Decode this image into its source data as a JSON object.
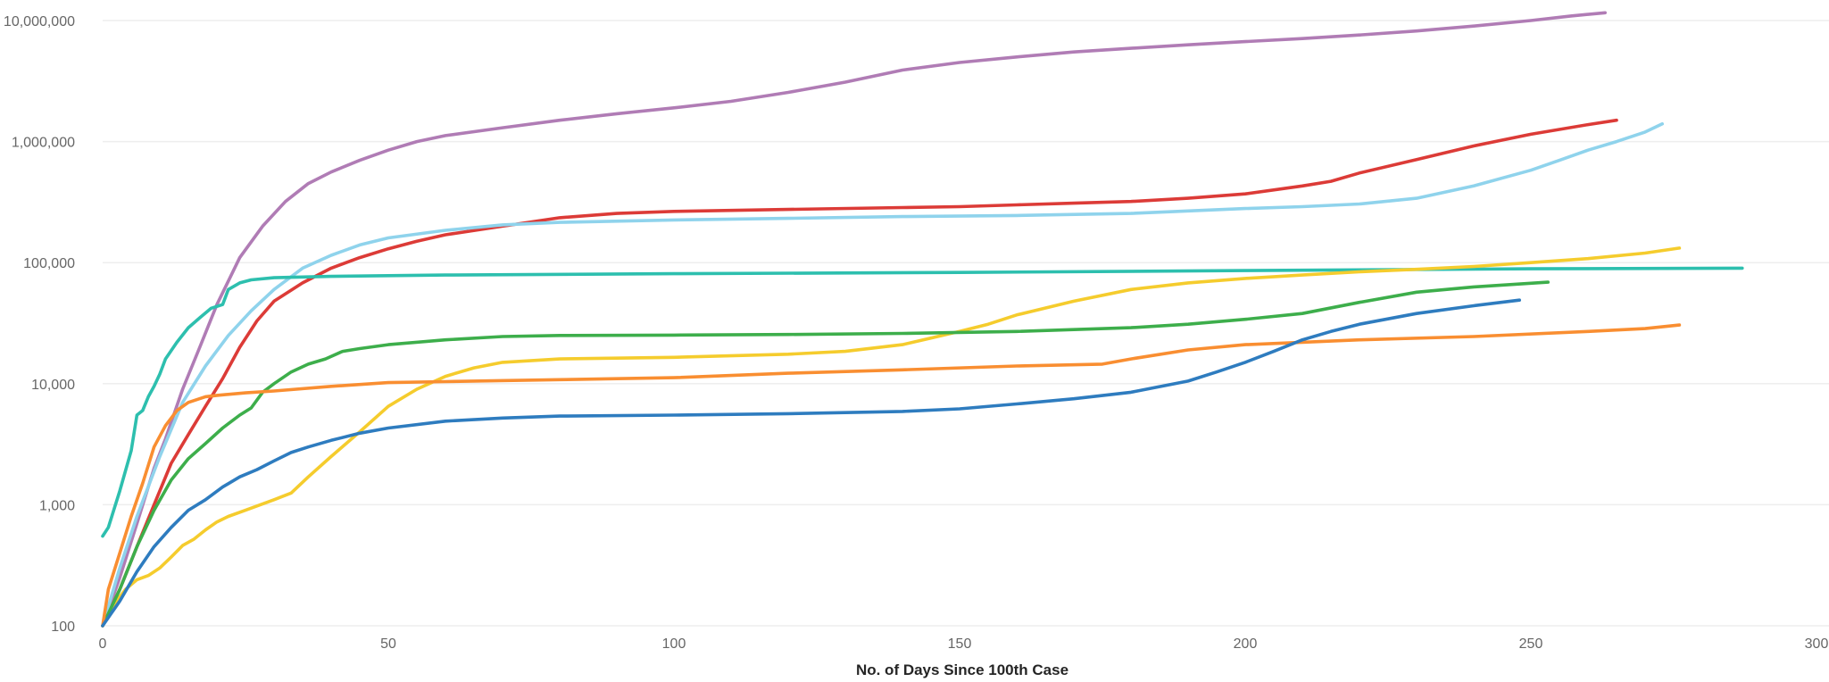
{
  "chart_data": {
    "type": "line",
    "title": "",
    "xlabel": "No. of Days Since 100th Case",
    "ylabel": "",
    "x_scale": "linear",
    "y_scale": "log",
    "xlim": [
      0,
      300
    ],
    "ylim": [
      100,
      10000000
    ],
    "x_ticks": [
      {
        "value": 0,
        "label": "0"
      },
      {
        "value": 50,
        "label": "50"
      },
      {
        "value": 100,
        "label": "100"
      },
      {
        "value": 150,
        "label": "150"
      },
      {
        "value": 200,
        "label": "200"
      },
      {
        "value": 250,
        "label": "250"
      },
      {
        "value": 300,
        "label": "300"
      }
    ],
    "y_ticks": [
      {
        "value": 100,
        "label": "100"
      },
      {
        "value": 1000,
        "label": "1,000"
      },
      {
        "value": 10000,
        "label": "10,000"
      },
      {
        "value": 100000,
        "label": "100,000"
      },
      {
        "value": 1000000,
        "label": "1,000,000"
      },
      {
        "value": 10000000,
        "label": "10,000,000"
      }
    ],
    "grid": true,
    "legend": "none",
    "series": [
      {
        "color": "#b07cb5",
        "points": [
          [
            0,
            100
          ],
          [
            3,
            250
          ],
          [
            6,
            700
          ],
          [
            9,
            2000
          ],
          [
            11,
            3500
          ],
          [
            14,
            9000
          ],
          [
            17,
            20000
          ],
          [
            20,
            45000
          ],
          [
            24,
            110000
          ],
          [
            28,
            200000
          ],
          [
            32,
            320000
          ],
          [
            36,
            450000
          ],
          [
            40,
            560000
          ],
          [
            45,
            700000
          ],
          [
            50,
            850000
          ],
          [
            55,
            1000000
          ],
          [
            60,
            1120000
          ],
          [
            70,
            1300000
          ],
          [
            80,
            1500000
          ],
          [
            90,
            1700000
          ],
          [
            100,
            1900000
          ],
          [
            110,
            2150000
          ],
          [
            120,
            2550000
          ],
          [
            130,
            3100000
          ],
          [
            140,
            3900000
          ],
          [
            150,
            4500000
          ],
          [
            160,
            5000000
          ],
          [
            170,
            5500000
          ],
          [
            180,
            5900000
          ],
          [
            190,
            6300000
          ],
          [
            200,
            6700000
          ],
          [
            210,
            7100000
          ],
          [
            220,
            7600000
          ],
          [
            230,
            8200000
          ],
          [
            240,
            9000000
          ],
          [
            250,
            10000000
          ],
          [
            257,
            10900000
          ],
          [
            263,
            11600000
          ]
        ]
      },
      {
        "color": "#dc3b37",
        "points": [
          [
            0,
            100
          ],
          [
            3,
            200
          ],
          [
            6,
            450
          ],
          [
            9,
            1000
          ],
          [
            12,
            2200
          ],
          [
            15,
            3800
          ],
          [
            18,
            6500
          ],
          [
            21,
            11000
          ],
          [
            24,
            20000
          ],
          [
            27,
            33000
          ],
          [
            30,
            48000
          ],
          [
            35,
            68000
          ],
          [
            40,
            90000
          ],
          [
            45,
            110000
          ],
          [
            50,
            130000
          ],
          [
            55,
            150000
          ],
          [
            60,
            170000
          ],
          [
            70,
            200000
          ],
          [
            80,
            235000
          ],
          [
            90,
            255000
          ],
          [
            100,
            265000
          ],
          [
            120,
            275000
          ],
          [
            140,
            285000
          ],
          [
            150,
            290000
          ],
          [
            160,
            300000
          ],
          [
            170,
            310000
          ],
          [
            180,
            320000
          ],
          [
            190,
            340000
          ],
          [
            200,
            370000
          ],
          [
            210,
            430000
          ],
          [
            215,
            470000
          ],
          [
            220,
            550000
          ],
          [
            230,
            710000
          ],
          [
            240,
            920000
          ],
          [
            250,
            1150000
          ],
          [
            260,
            1380000
          ],
          [
            265,
            1500000
          ]
        ]
      },
      {
        "color": "#8fd3ec",
        "points": [
          [
            0,
            100
          ],
          [
            3,
            300
          ],
          [
            6,
            800
          ],
          [
            10,
            2500
          ],
          [
            14,
            7000
          ],
          [
            18,
            14000
          ],
          [
            22,
            25000
          ],
          [
            26,
            40000
          ],
          [
            30,
            60000
          ],
          [
            35,
            90000
          ],
          [
            40,
            115000
          ],
          [
            45,
            140000
          ],
          [
            50,
            160000
          ],
          [
            60,
            185000
          ],
          [
            70,
            205000
          ],
          [
            80,
            215000
          ],
          [
            100,
            225000
          ],
          [
            120,
            232000
          ],
          [
            140,
            240000
          ],
          [
            160,
            245000
          ],
          [
            180,
            255000
          ],
          [
            200,
            280000
          ],
          [
            210,
            290000
          ],
          [
            220,
            305000
          ],
          [
            230,
            340000
          ],
          [
            240,
            430000
          ],
          [
            250,
            580000
          ],
          [
            255,
            700000
          ],
          [
            260,
            850000
          ],
          [
            265,
            1000000
          ],
          [
            270,
            1200000
          ],
          [
            273,
            1400000
          ]
        ]
      },
      {
        "color": "#2dbfae",
        "points": [
          [
            0,
            550
          ],
          [
            1,
            650
          ],
          [
            3,
            1300
          ],
          [
            5,
            2800
          ],
          [
            6,
            5500
          ],
          [
            7,
            6000
          ],
          [
            8,
            7800
          ],
          [
            9,
            9500
          ],
          [
            10,
            12000
          ],
          [
            11,
            16000
          ],
          [
            13,
            22000
          ],
          [
            15,
            29000
          ],
          [
            17,
            35000
          ],
          [
            19,
            42000
          ],
          [
            21,
            45000
          ],
          [
            22,
            60000
          ],
          [
            24,
            68000
          ],
          [
            26,
            72000
          ],
          [
            30,
            75000
          ],
          [
            40,
            77000
          ],
          [
            60,
            79000
          ],
          [
            100,
            81000
          ],
          [
            150,
            83000
          ],
          [
            200,
            86000
          ],
          [
            250,
            89000
          ],
          [
            287,
            90000
          ]
        ]
      },
      {
        "color": "#f5cc2d",
        "points": [
          [
            0,
            100
          ],
          [
            2,
            150
          ],
          [
            4,
            200
          ],
          [
            6,
            240
          ],
          [
            8,
            260
          ],
          [
            10,
            300
          ],
          [
            12,
            370
          ],
          [
            14,
            460
          ],
          [
            16,
            520
          ],
          [
            18,
            620
          ],
          [
            20,
            720
          ],
          [
            22,
            800
          ],
          [
            25,
            900
          ],
          [
            30,
            1100
          ],
          [
            33,
            1250
          ],
          [
            36,
            1700
          ],
          [
            40,
            2500
          ],
          [
            45,
            4000
          ],
          [
            50,
            6500
          ],
          [
            55,
            9000
          ],
          [
            60,
            11500
          ],
          [
            65,
            13500
          ],
          [
            70,
            15000
          ],
          [
            80,
            16000
          ],
          [
            100,
            16500
          ],
          [
            120,
            17500
          ],
          [
            130,
            18500
          ],
          [
            140,
            21000
          ],
          [
            150,
            27000
          ],
          [
            155,
            31000
          ],
          [
            160,
            37000
          ],
          [
            170,
            48000
          ],
          [
            180,
            60000
          ],
          [
            190,
            68000
          ],
          [
            200,
            74000
          ],
          [
            210,
            79000
          ],
          [
            220,
            84000
          ],
          [
            230,
            88000
          ],
          [
            240,
            93000
          ],
          [
            250,
            100000
          ],
          [
            260,
            108000
          ],
          [
            270,
            120000
          ],
          [
            276,
            132000
          ]
        ]
      },
      {
        "color": "#3dae4b",
        "points": [
          [
            0,
            100
          ],
          [
            3,
            200
          ],
          [
            6,
            450
          ],
          [
            9,
            900
          ],
          [
            12,
            1600
          ],
          [
            15,
            2400
          ],
          [
            18,
            3200
          ],
          [
            21,
            4300
          ],
          [
            24,
            5500
          ],
          [
            26,
            6300
          ],
          [
            28,
            8500
          ],
          [
            30,
            10000
          ],
          [
            33,
            12500
          ],
          [
            36,
            14500
          ],
          [
            39,
            16000
          ],
          [
            42,
            18500
          ],
          [
            45,
            19500
          ],
          [
            50,
            21000
          ],
          [
            60,
            23000
          ],
          [
            70,
            24500
          ],
          [
            80,
            25000
          ],
          [
            100,
            25200
          ],
          [
            120,
            25500
          ],
          [
            140,
            26000
          ],
          [
            160,
            27000
          ],
          [
            180,
            29000
          ],
          [
            190,
            31000
          ],
          [
            200,
            34000
          ],
          [
            210,
            38000
          ],
          [
            220,
            47000
          ],
          [
            230,
            57000
          ],
          [
            240,
            63000
          ],
          [
            253,
            69000
          ]
        ]
      },
      {
        "color": "#f98e31",
        "points": [
          [
            0,
            100
          ],
          [
            1,
            200
          ],
          [
            3,
            400
          ],
          [
            5,
            800
          ],
          [
            7,
            1500
          ],
          [
            9,
            3000
          ],
          [
            11,
            4500
          ],
          [
            13,
            6000
          ],
          [
            15,
            7000
          ],
          [
            18,
            7800
          ],
          [
            20,
            8000
          ],
          [
            25,
            8400
          ],
          [
            30,
            8700
          ],
          [
            40,
            9500
          ],
          [
            50,
            10200
          ],
          [
            60,
            10400
          ],
          [
            80,
            10800
          ],
          [
            100,
            11200
          ],
          [
            120,
            12200
          ],
          [
            140,
            13000
          ],
          [
            160,
            14000
          ],
          [
            175,
            14500
          ],
          [
            180,
            16000
          ],
          [
            190,
            19000
          ],
          [
            200,
            21000
          ],
          [
            210,
            22000
          ],
          [
            220,
            23000
          ],
          [
            240,
            24500
          ],
          [
            260,
            27000
          ],
          [
            270,
            28500
          ],
          [
            276,
            30500
          ]
        ]
      },
      {
        "color": "#2e7cbf",
        "points": [
          [
            0,
            100
          ],
          [
            3,
            160
          ],
          [
            6,
            280
          ],
          [
            9,
            450
          ],
          [
            12,
            650
          ],
          [
            15,
            900
          ],
          [
            18,
            1100
          ],
          [
            21,
            1400
          ],
          [
            24,
            1700
          ],
          [
            27,
            1950
          ],
          [
            30,
            2300
          ],
          [
            33,
            2700
          ],
          [
            36,
            3000
          ],
          [
            40,
            3400
          ],
          [
            45,
            3900
          ],
          [
            50,
            4300
          ],
          [
            60,
            4900
          ],
          [
            70,
            5200
          ],
          [
            80,
            5400
          ],
          [
            100,
            5500
          ],
          [
            120,
            5650
          ],
          [
            140,
            5900
          ],
          [
            150,
            6200
          ],
          [
            160,
            6800
          ],
          [
            170,
            7500
          ],
          [
            180,
            8500
          ],
          [
            190,
            10500
          ],
          [
            195,
            12500
          ],
          [
            200,
            15000
          ],
          [
            205,
            18500
          ],
          [
            210,
            23000
          ],
          [
            215,
            27000
          ],
          [
            220,
            31000
          ],
          [
            230,
            38000
          ],
          [
            240,
            44000
          ],
          [
            248,
            49000
          ]
        ]
      }
    ]
  }
}
